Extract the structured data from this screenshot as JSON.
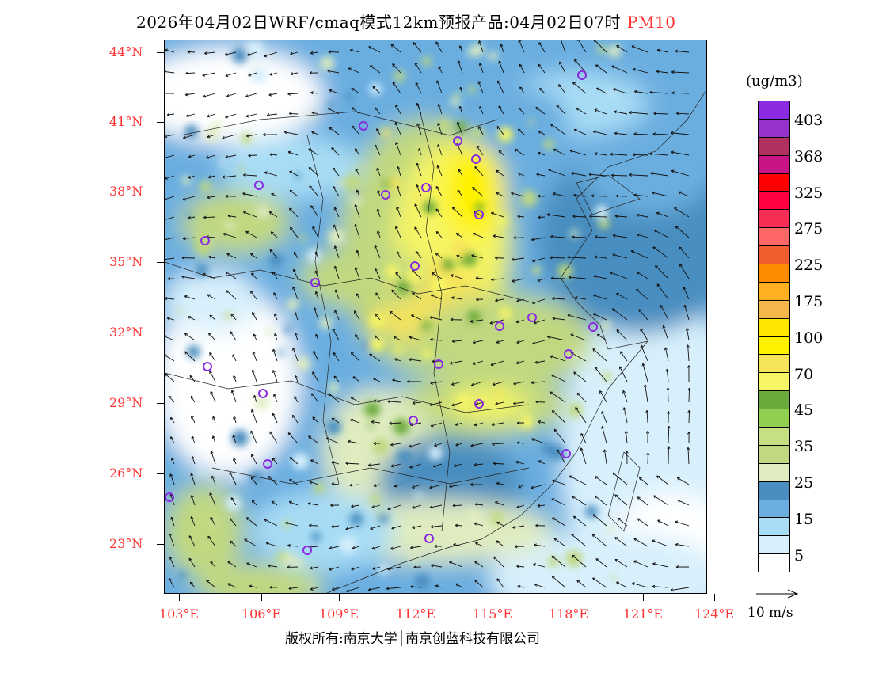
{
  "title": {
    "main": "2026年04月02日WRF/cmaq模式12km预报产品:04月02日07时",
    "species": "PM10"
  },
  "lat_labels": [
    "44°N",
    "41°N",
    "38°N",
    "35°N",
    "32°N",
    "29°N",
    "26°N",
    "23°N"
  ],
  "lon_labels": [
    "103°E",
    "106°E",
    "109°E",
    "112°E",
    "115°E",
    "118°E",
    "121°E",
    "124°E"
  ],
  "colorbar": {
    "unit": "(ug/m3)",
    "labels": [
      "403",
      "368",
      "325",
      "275",
      "225",
      "175",
      "100",
      "70",
      "45",
      "35",
      "25",
      "15",
      "5"
    ],
    "colors": [
      "#8a2be2",
      "#9932cc",
      "#b03060",
      "#c71585",
      "#ff0000",
      "#ff0040",
      "#f62d55",
      "#ff6666",
      "#f05e30",
      "#ff8c00",
      "#ffb020",
      "#f5b64b",
      "#ffe600",
      "#fff200",
      "#f5e35a",
      "#f5f565",
      "#6aaa3a",
      "#90d050",
      "#c5e080",
      "#c0d880",
      "#e0ecc0",
      "#4a8ec0",
      "#6aaee0",
      "#a8dcf5",
      "#d8f0fc",
      "#ffffff"
    ]
  },
  "wind_legend": {
    "label": "10 m/s"
  },
  "footer": "版权所有:南京大学│南京创蓝科技有限公司"
}
